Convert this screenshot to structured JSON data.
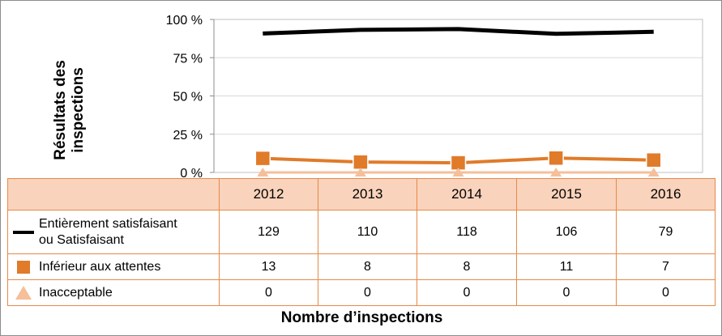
{
  "chart_data": {
    "type": "line",
    "ylabel_lines": [
      "Résultats des",
      "inspections"
    ],
    "xlabel": "Nombre d’inspections",
    "y_ticks": [
      "0 %",
      "25 %",
      "50 %",
      "75 %",
      "100 %"
    ],
    "ylim": [
      0,
      100
    ],
    "categories": [
      "2012",
      "2013",
      "2014",
      "2015",
      "2016"
    ],
    "series": [
      {
        "name_lines": [
          "Entièrement satisfaisant",
          "ou Satisfaisant"
        ],
        "marker": "line",
        "color": "#000000",
        "values": [
          90.8,
          93.2,
          93.7,
          90.6,
          91.9
        ],
        "counts": [
          "129",
          "110",
          "118",
          "106",
          "79"
        ]
      },
      {
        "name_lines": [
          "Inférieur aux attentes"
        ],
        "marker": "square",
        "color": "#e07b2a",
        "values": [
          9.2,
          6.8,
          6.3,
          9.4,
          8.1
        ],
        "counts": [
          "13",
          "8",
          "8",
          "11",
          "7"
        ]
      },
      {
        "name_lines": [
          "Inacceptable"
        ],
        "marker": "triangle",
        "color": "#f5bf9a",
        "values": [
          0,
          0,
          0,
          0,
          0
        ],
        "counts": [
          "0",
          "0",
          "0",
          "0",
          "0"
        ]
      }
    ],
    "grid": true
  }
}
